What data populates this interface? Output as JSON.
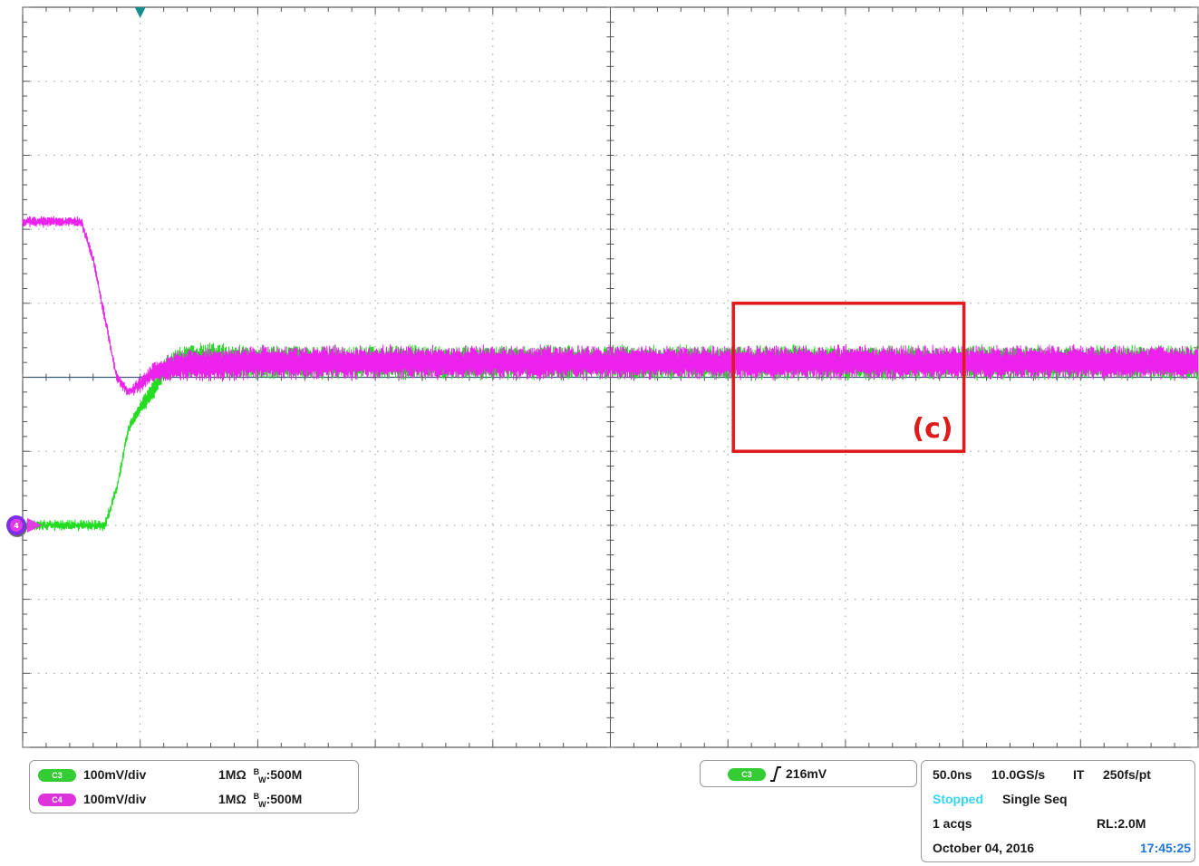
{
  "chart_data": {
    "type": "line",
    "title": "",
    "xlabel": "",
    "ylabel": "",
    "grid": true,
    "x_divisions": 10,
    "y_divisions": 10,
    "xlim_divisions": [
      0,
      10
    ],
    "ylim_divisions": [
      -5,
      5
    ],
    "series": [
      {
        "channel": "C3",
        "color": "#22dd22",
        "scale": "100mV/div",
        "x_div": [
          0,
          0.7,
          0.8,
          0.9,
          1.0,
          1.1,
          1.2,
          1.3,
          1.5,
          2.0,
          10.0
        ],
        "y_div": [
          -2.0,
          -2.0,
          -1.5,
          -0.7,
          -0.4,
          -0.2,
          0.1,
          0.2,
          0.25,
          0.2,
          0.2
        ],
        "ripple_div": 0.22
      },
      {
        "channel": "C4",
        "color": "#ee22ee",
        "scale": "100mV/div",
        "x_div": [
          0,
          0.5,
          0.6,
          0.7,
          0.8,
          0.9,
          1.0,
          1.1,
          1.3,
          2.0,
          10.0
        ],
        "y_div": [
          2.1,
          2.1,
          1.6,
          0.8,
          0.0,
          -0.2,
          -0.1,
          0.05,
          0.15,
          0.2,
          0.2
        ],
        "ripple_div": 0.22
      }
    ],
    "annotations": [
      {
        "label": "(c)",
        "x_range_div": [
          6.0,
          8.0
        ],
        "y_range_div": [
          -1.0,
          1.0
        ],
        "color": "#e01a1a"
      }
    ]
  },
  "markers": {
    "trigger_position_icon": "teal-down-triangle",
    "ground_marker_label": "4"
  },
  "channel_box": {
    "rows": [
      {
        "pill": "C3",
        "pill_color": "#33cc33",
        "scale": "100mV/div",
        "impedance": "1MΩ",
        "bw_prefix": "B",
        "bw_sub": "W",
        "bw_value": ":500M"
      },
      {
        "pill": "C4",
        "pill_color": "#dd33dd",
        "scale": "100mV/div",
        "impedance": "1MΩ",
        "bw_prefix": "B",
        "bw_sub": "W",
        "bw_value": ":500M"
      }
    ]
  },
  "trigger_box": {
    "pill": "C3",
    "pill_color": "#33cc33",
    "edge_icon": "rising-edge-icon",
    "level": "216mV"
  },
  "timebase_box": {
    "timebase": "50.0ns",
    "sample_rate": "10.0GS/s",
    "mode": "IT",
    "resolution": "250fs/pt",
    "status": "Stopped",
    "status_color": "#33d6f0",
    "acq_mode": "Single Seq",
    "acqs": "1 acqs",
    "record_length": "RL:2.0M",
    "date": "October 04, 2016",
    "time": "17:45:25",
    "time_color": "#1e74e0"
  }
}
